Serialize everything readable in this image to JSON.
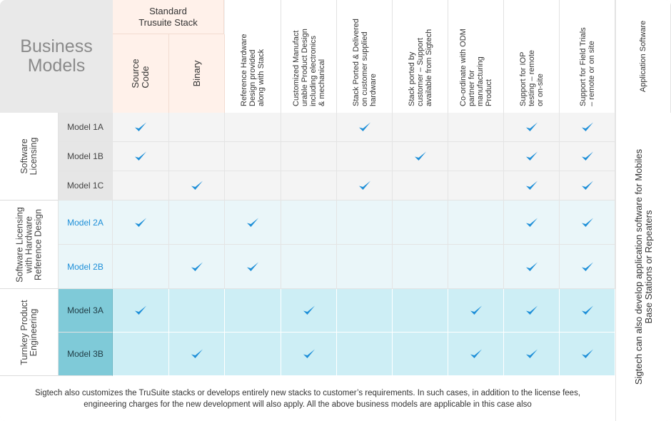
{
  "title": "Business Models",
  "standard_stack": {
    "label": "Standard\nTrusuite Stack",
    "columns": [
      "Source Code",
      "Binary"
    ]
  },
  "columns": [
    "Reference Hardware\nDesign provided\nalong with Stack",
    "Customized Manufact\nurable Product Design\nincluding electronics\n& mechanical",
    "Stack Ported & Delivered\non customer supplied\nhardware",
    "Stack ported by\ncustomer – Support\navailable from Sigtech",
    "Co-ordinate  with ODM\npartner for\nmanufacturing\nProduct",
    "Support for IOP\ntesting – remote\nor on-site",
    "Support for Field Trials\n– remote or on site"
  ],
  "app_software": {
    "header": "Application Software",
    "body": "Sigtech can also develop application software for Mobiles\nBase Stations or Repeaters"
  },
  "groups": [
    {
      "label": "Software\nLicensing",
      "models": [
        "Model 1A",
        "Model 1B",
        "Model 1C"
      ]
    },
    {
      "label": "Software Licensing\nwith Hardware\nReference Design",
      "models": [
        "Model 2A",
        "Model 2B"
      ]
    },
    {
      "label": "Turnkey Product\nEngineering",
      "models": [
        "Model 3A",
        "Model 3B"
      ]
    }
  ],
  "matrix": {
    "Model 1A": [
      true,
      false,
      false,
      false,
      true,
      false,
      false,
      true,
      true
    ],
    "Model 1B": [
      true,
      false,
      false,
      false,
      false,
      true,
      false,
      true,
      true
    ],
    "Model 1C": [
      false,
      true,
      false,
      false,
      true,
      false,
      false,
      true,
      true
    ],
    "Model 2A": [
      true,
      false,
      true,
      false,
      false,
      false,
      false,
      true,
      true
    ],
    "Model 2B": [
      false,
      true,
      true,
      false,
      false,
      false,
      false,
      true,
      true
    ],
    "Model 3A": [
      true,
      false,
      false,
      true,
      false,
      false,
      true,
      true,
      true
    ],
    "Model 3B": [
      false,
      true,
      false,
      true,
      false,
      false,
      true,
      true,
      true
    ]
  },
  "footer": "Sigtech also customizes the TruSuite stacks or develops entirely new stacks to customer’s requirements. In such cases, in addition to the license fees, engineering charges for the new development will also apply. All the above business models are applicable in this case also",
  "colors": {
    "check": "#1e8fd8",
    "group1_model_bg": "#e6e6e6",
    "group1_row_bg": "#f4f4f4",
    "group2_model_text": "#1e8fd8",
    "group2_row_bg": "#eaf6f9",
    "group3_model_bg": "#7fcad8",
    "group3_row_bg": "#cdeef5",
    "standard_stack_bg": "#fff1ea"
  }
}
